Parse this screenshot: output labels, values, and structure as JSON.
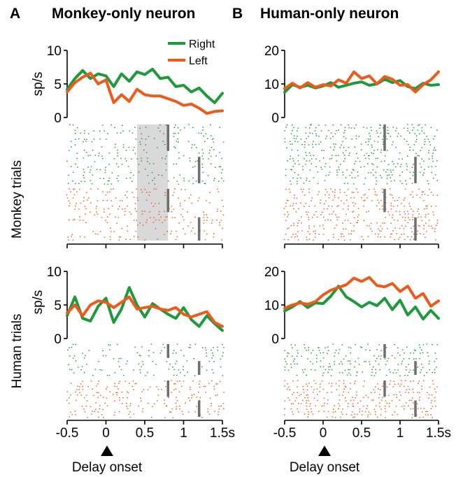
{
  "panels": [
    {
      "letter": "A",
      "title": "Monkey-only neuron"
    },
    {
      "letter": "B",
      "title": "Human-only neuron"
    }
  ],
  "row_labels": [
    "Monkey trials",
    "Human trials"
  ],
  "ylabel": "sp/s",
  "event_label": "Delay onset",
  "colors": {
    "right": "#1e9a3c",
    "left": "#ee5a1c",
    "marker": "#6e6e6e",
    "shade": "#d9d9d9"
  },
  "chart_data": [
    {
      "type": "line",
      "panel": "A",
      "row": "Monkey trials",
      "ylabel": "sp/s",
      "xlim": [
        -0.5,
        1.5
      ],
      "ylim": [
        0,
        10
      ],
      "yticks": [
        0,
        5,
        10
      ],
      "x": [
        -0.5,
        -0.4,
        -0.3,
        -0.2,
        -0.1,
        0,
        0.1,
        0.2,
        0.3,
        0.4,
        0.5,
        0.6,
        0.7,
        0.8,
        0.9,
        1.0,
        1.1,
        1.2,
        1.3,
        1.4,
        1.5
      ],
      "series": [
        {
          "name": "Right",
          "values": [
            4.2,
            5.8,
            7.0,
            5.8,
            6.5,
            6.2,
            4.6,
            6.5,
            5.4,
            6.8,
            6.4,
            7.2,
            5.8,
            6.0,
            4.6,
            4.8,
            3.8,
            4.4,
            3.2,
            2.2,
            3.6
          ]
        },
        {
          "name": "Left",
          "values": [
            3.8,
            5.2,
            6.0,
            6.6,
            5.0,
            5.6,
            2.2,
            3.4,
            2.4,
            4.2,
            3.4,
            3.2,
            3.2,
            2.8,
            2.4,
            1.8,
            2.0,
            1.4,
            0.6,
            0.9,
            1.0
          ]
        }
      ],
      "legend": "top-right",
      "raster": {
        "right": {
          "density": 0.55
        },
        "left": {
          "density": 0.55
        },
        "markers_x": [
          0.8,
          1.2
        ]
      },
      "shaded_window": [
        0.4,
        0.8
      ]
    },
    {
      "type": "line",
      "panel": "B",
      "row": "Monkey trials",
      "ylabel": "sp/s",
      "xlim": [
        -0.5,
        1.5
      ],
      "ylim": [
        0,
        20
      ],
      "yticks": [
        0,
        10,
        20
      ],
      "x": [
        -0.5,
        -0.4,
        -0.3,
        -0.2,
        -0.1,
        0,
        0.1,
        0.2,
        0.3,
        0.4,
        0.5,
        0.6,
        0.7,
        0.8,
        0.9,
        1.0,
        1.1,
        1.2,
        1.3,
        1.4,
        1.5
      ],
      "series": [
        {
          "name": "Right",
          "values": [
            7.5,
            9.8,
            9.0,
            9.6,
            8.8,
            9.4,
            10.4,
            9.0,
            9.6,
            10.2,
            10.6,
            9.6,
            10.0,
            11.4,
            10.4,
            11.0,
            9.2,
            8.6,
            10.2,
            9.6,
            9.8
          ]
        },
        {
          "name": "Left",
          "values": [
            8.6,
            10.2,
            8.8,
            10.4,
            9.0,
            9.8,
            9.4,
            11.2,
            10.2,
            13.6,
            11.6,
            12.4,
            10.0,
            12.2,
            11.4,
            9.6,
            9.8,
            7.6,
            9.8,
            11.2,
            13.6
          ]
        }
      ],
      "raster": {
        "right": {
          "density": 0.8
        },
        "left": {
          "density": 0.85
        },
        "markers_x": [
          0.8,
          1.2
        ]
      }
    },
    {
      "type": "line",
      "panel": "A",
      "row": "Human trials",
      "ylabel": "sp/s",
      "xlim": [
        -0.5,
        1.5
      ],
      "ylim": [
        0,
        10
      ],
      "yticks": [
        0,
        5,
        10
      ],
      "x": [
        -0.5,
        -0.4,
        -0.3,
        -0.2,
        -0.1,
        0,
        0.1,
        0.2,
        0.3,
        0.4,
        0.5,
        0.6,
        0.7,
        0.8,
        0.9,
        1.0,
        1.1,
        1.2,
        1.3,
        1.4,
        1.5
      ],
      "series": [
        {
          "name": "Right",
          "values": [
            3.4,
            6.2,
            3.0,
            2.6,
            4.8,
            6.0,
            2.4,
            4.4,
            7.6,
            5.0,
            3.2,
            5.2,
            4.4,
            3.6,
            3.0,
            4.6,
            2.8,
            1.8,
            3.4,
            2.2,
            1.2
          ]
        },
        {
          "name": "Left",
          "values": [
            3.8,
            5.0,
            3.4,
            5.0,
            5.6,
            5.4,
            4.6,
            5.4,
            6.2,
            4.4,
            4.6,
            4.8,
            4.4,
            4.2,
            4.6,
            3.6,
            3.2,
            3.6,
            4.0,
            2.4,
            1.8
          ]
        }
      ],
      "raster": {
        "right": {
          "density": 0.5
        },
        "left": {
          "density": 0.6
        },
        "markers_x": [
          0.8,
          1.2
        ]
      }
    },
    {
      "type": "line",
      "panel": "B",
      "row": "Human trials",
      "ylabel": "sp/s",
      "xlim": [
        -0.5,
        1.5
      ],
      "ylim": [
        0,
        20
      ],
      "yticks": [
        0,
        10,
        20
      ],
      "x": [
        -0.5,
        -0.4,
        -0.3,
        -0.2,
        -0.1,
        0,
        0.1,
        0.2,
        0.3,
        0.4,
        0.5,
        0.6,
        0.7,
        0.8,
        0.9,
        1.0,
        1.1,
        1.2,
        1.3,
        1.4,
        1.5
      ],
      "series": [
        {
          "name": "Right",
          "values": [
            8.2,
            9.4,
            11.0,
            9.2,
            10.6,
            10.4,
            12.6,
            15.6,
            12.4,
            11.0,
            9.4,
            10.8,
            9.8,
            12.0,
            8.6,
            11.4,
            7.0,
            9.4,
            5.8,
            8.4,
            6.0
          ]
        },
        {
          "name": "Left",
          "values": [
            9.0,
            10.0,
            10.6,
            10.2,
            11.0,
            13.0,
            14.4,
            15.2,
            16.0,
            18.0,
            17.0,
            18.2,
            15.8,
            15.4,
            16.4,
            14.0,
            15.6,
            12.0,
            13.4,
            9.6,
            11.2
          ]
        }
      ],
      "raster": {
        "right": {
          "density": 0.75
        },
        "left": {
          "density": 0.95
        },
        "markers_x": [
          0.8,
          1.2
        ]
      }
    }
  ],
  "xticks": [
    {
      "label": "-0.5",
      "value": -0.5
    },
    {
      "label": "0",
      "value": 0
    },
    {
      "label": "0.5",
      "value": 0.5
    },
    {
      "label": "1",
      "value": 1
    },
    {
      "label": "1.5s",
      "value": 1.5
    }
  ],
  "legend": [
    "Right",
    "Left"
  ]
}
